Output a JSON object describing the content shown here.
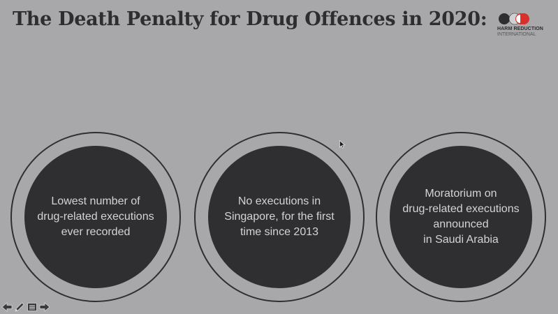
{
  "slide": {
    "title": "The Death Penalty for Drug Offences in 2020:"
  },
  "logo": {
    "line1": "HARM REDUCTION",
    "line2": "INTERNATIONAL",
    "colors": [
      "#2e2e30",
      "#d0d0d0",
      "#d9302c"
    ]
  },
  "circles": [
    {
      "lines": [
        "Lowest number of",
        "drug-related executions",
        "ever recorded"
      ]
    },
    {
      "lines": [
        "No executions in",
        "Singapore, for the first",
        "time since 2013"
      ]
    },
    {
      "lines": [
        "Moratorium on",
        "drug-related executions",
        "announced",
        "in Saudi Arabia"
      ]
    }
  ],
  "navigation": {
    "icons": [
      "arrow-left-icon",
      "pencil-icon",
      "menu-icon",
      "arrow-right-icon"
    ]
  },
  "colors": {
    "background": "#a8a8aa",
    "circle_fill": "#2f2f31",
    "circle_text": "#d4d4d4",
    "title": "#2e2e30"
  }
}
